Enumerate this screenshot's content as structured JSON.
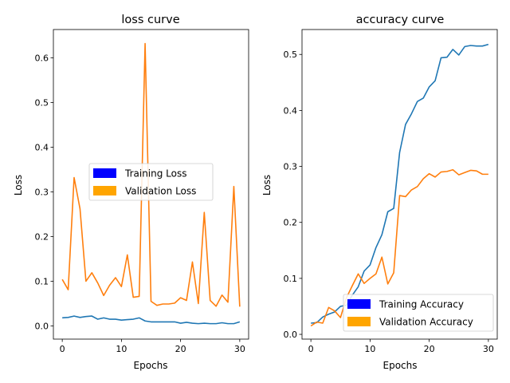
{
  "chart_data": [
    {
      "type": "line",
      "title": "loss curve",
      "xlabel": "Epochs",
      "ylabel": "Loss",
      "xlim": [
        -1.5,
        31.5
      ],
      "ylim": [
        -0.0296,
        0.6633
      ],
      "xticks": [
        0,
        10,
        20,
        30
      ],
      "yticks": [
        0.0,
        0.1,
        0.2,
        0.3,
        0.4,
        0.5,
        0.6
      ],
      "grid": false,
      "legend_position": "center-right",
      "legend": [
        {
          "label": "Training Loss",
          "color": "#0000ff"
        },
        {
          "label": "Validation Loss",
          "color": "#ffa500"
        }
      ],
      "x": [
        0,
        1,
        2,
        3,
        4,
        5,
        6,
        7,
        8,
        9,
        10,
        11,
        12,
        13,
        14,
        15,
        16,
        17,
        18,
        19,
        20,
        21,
        22,
        23,
        24,
        25,
        26,
        27,
        28,
        29,
        30
      ],
      "series": [
        {
          "color": "#1f77b4",
          "values": [
            0.018,
            0.019,
            0.022,
            0.019,
            0.021,
            0.022,
            0.015,
            0.018,
            0.015,
            0.015,
            0.013,
            0.014,
            0.015,
            0.018,
            0.011,
            0.009,
            0.009,
            0.009,
            0.009,
            0.009,
            0.006,
            0.008,
            0.006,
            0.005,
            0.006,
            0.005,
            0.005,
            0.007,
            0.005,
            0.005,
            0.009
          ]
        },
        {
          "color": "#ff7f0e",
          "values": [
            0.104,
            0.081,
            0.332,
            0.262,
            0.1,
            0.119,
            0.096,
            0.068,
            0.091,
            0.108,
            0.088,
            0.159,
            0.064,
            0.066,
            0.632,
            0.055,
            0.046,
            0.049,
            0.049,
            0.051,
            0.063,
            0.057,
            0.143,
            0.05,
            0.254,
            0.057,
            0.044,
            0.069,
            0.053,
            0.312,
            0.043
          ]
        }
      ]
    },
    {
      "type": "line",
      "title": "accuracy curve",
      "xlabel": "Epochs",
      "ylabel": "Loss",
      "xlim": [
        -1.5,
        31.5
      ],
      "ylim": [
        -0.0085,
        0.5445
      ],
      "xticks": [
        0,
        10,
        20,
        30
      ],
      "yticks": [
        0.0,
        0.1,
        0.2,
        0.3,
        0.4,
        0.5
      ],
      "grid": false,
      "legend_position": "lower-right",
      "legend": [
        {
          "label": "Training Accuracy",
          "color": "#0000ff"
        },
        {
          "label": "Validation Accuracy",
          "color": "#ffa500"
        }
      ],
      "x": [
        0,
        1,
        2,
        3,
        4,
        5,
        6,
        7,
        8,
        9,
        10,
        11,
        12,
        13,
        14,
        15,
        16,
        17,
        18,
        19,
        20,
        21,
        22,
        23,
        24,
        25,
        26,
        27,
        28,
        29,
        30
      ],
      "series": [
        {
          "color": "#1f77b4",
          "values": [
            0.02,
            0.021,
            0.031,
            0.036,
            0.04,
            0.05,
            0.052,
            0.07,
            0.085,
            0.113,
            0.124,
            0.155,
            0.178,
            0.219,
            0.225,
            0.325,
            0.375,
            0.394,
            0.416,
            0.422,
            0.442,
            0.453,
            0.494,
            0.495,
            0.509,
            0.499,
            0.514,
            0.516,
            0.515,
            0.515,
            0.518
          ]
        },
        {
          "color": "#ff7f0e",
          "values": [
            0.015,
            0.022,
            0.02,
            0.048,
            0.042,
            0.03,
            0.065,
            0.087,
            0.108,
            0.091,
            0.1,
            0.108,
            0.138,
            0.09,
            0.11,
            0.248,
            0.246,
            0.258,
            0.264,
            0.278,
            0.287,
            0.281,
            0.29,
            0.291,
            0.294,
            0.285,
            0.289,
            0.293,
            0.292,
            0.286,
            0.286
          ]
        }
      ]
    }
  ]
}
